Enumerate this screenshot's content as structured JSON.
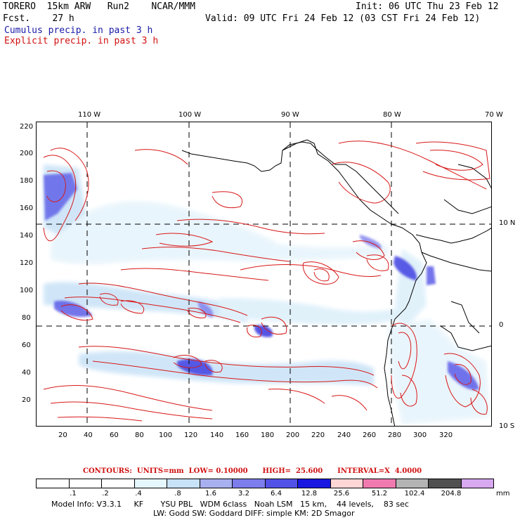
{
  "header": {
    "model": "TORERO  15km ARW   Run2    NCAR/MMM",
    "init": "Init: 06 UTC Thu 23 Feb 12",
    "fcst": "Fcst.    27 h",
    "valid": "Valid: 09 UTC Fri 24 Feb 12 (03 CST Fri 24 Feb 12)",
    "cumulus": "Cumulus precip. in past 3 h",
    "explicit": "Explicit precip. in past 3 h"
  },
  "axes": {
    "lon_top": [
      "110 W",
      "100 W",
      "90 W",
      "80 W",
      "70 W"
    ],
    "lat_right": [
      "10 N",
      "0",
      "10 S"
    ],
    "y_ticks": [
      "220",
      "200",
      "180",
      "160",
      "140",
      "120",
      "100",
      "80",
      "60",
      "40",
      "20"
    ],
    "x_ticks": [
      "20",
      "40",
      "60",
      "80",
      "100",
      "120",
      "140",
      "160",
      "180",
      "200",
      "220",
      "240",
      "260",
      "280",
      "300",
      "320"
    ]
  },
  "contours": "CONTOURS:  UNITS=mm  LOW= 0.10000      HIGH=  25.600      INTERVAL=X  4.0000",
  "colorbar": {
    "labels": [
      ".1",
      ".2",
      ".4",
      ".8",
      "1.6",
      "3.2",
      "6.4",
      "12.8",
      "25.6",
      "51.2",
      "102.4",
      "204.8"
    ],
    "colors": [
      "#ffffff",
      "#ffffff",
      "#ffffff",
      "#e6f7ff",
      "#c8e2f7",
      "#a8b0f0",
      "#7d7dec",
      "#5252e6",
      "#1818e0",
      "#ffd6d6",
      "#f07ab0",
      "#b4b4b4",
      "#505050",
      "#d8a8f0"
    ],
    "units": "mm"
  },
  "info": {
    "line1": "Model Info: V3.3.1     KF       YSU PBL   WDM 6class   Noah LSM   15 km,    44 levels,    83 sec",
    "line2": "LW: Godd SW: Goddard DIFF: simple KM: 2D Smagor"
  }
}
